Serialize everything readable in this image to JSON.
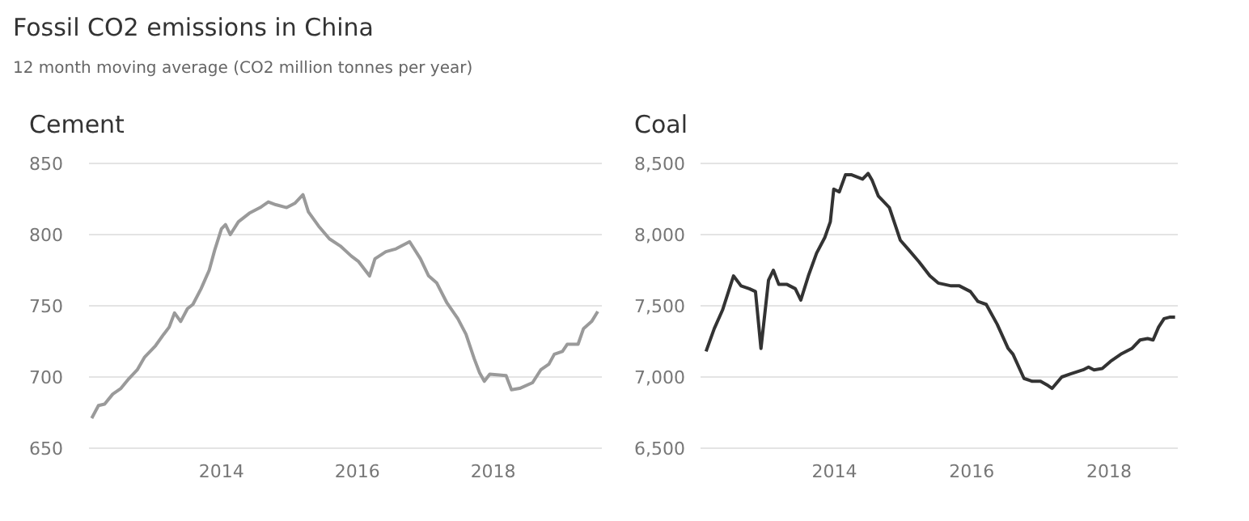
{
  "chart_data": [
    {
      "type": "line",
      "title": "Cement",
      "annotations": [
        "Fossil CO2 emissions in China",
        "12 month moving average (CO2 million tonnes per year)"
      ],
      "xlim": [
        2012.05,
        2019.6
      ],
      "xticks": [
        2014,
        2016,
        2018
      ],
      "ylim": [
        650,
        850
      ],
      "yticks": [
        650,
        700,
        750,
        800,
        850
      ],
      "grid": "y",
      "series": [
        {
          "color": "#9a9a9a",
          "x": [
            2012.09,
            2012.19,
            2012.28,
            2012.4,
            2012.52,
            2012.64,
            2012.76,
            2012.87,
            2013.03,
            2013.15,
            2013.23,
            2013.31,
            2013.4,
            2013.5,
            2013.58,
            2013.7,
            2013.82,
            2013.9,
            2014.0,
            2014.06,
            2014.13,
            2014.25,
            2014.41,
            2014.57,
            2014.69,
            2014.8,
            2014.96,
            2015.08,
            2015.2,
            2015.28,
            2015.43,
            2015.59,
            2015.75,
            2015.91,
            2016.02,
            2016.18,
            2016.26,
            2016.42,
            2016.57,
            2016.77,
            2016.93,
            2017.05,
            2017.17,
            2017.32,
            2017.48,
            2017.6,
            2017.72,
            2017.8,
            2017.87,
            2017.95,
            2018.19,
            2018.27,
            2018.39,
            2018.58,
            2018.7,
            2018.82,
            2018.9,
            2019.02,
            2019.09,
            2019.25,
            2019.33,
            2019.45,
            2019.54
          ],
          "values": [
            671,
            680,
            681,
            688,
            692,
            699,
            705,
            714,
            722,
            730,
            735,
            745,
            739,
            748,
            751,
            762,
            775,
            789,
            804,
            807,
            800,
            809,
            815,
            819,
            823,
            821,
            819,
            822,
            828,
            816,
            806,
            797,
            792,
            785,
            781,
            771,
            783,
            788,
            790,
            795,
            783,
            771,
            766,
            752,
            741,
            730,
            713,
            703,
            697,
            702,
            701,
            691,
            692,
            696,
            705,
            709,
            716,
            718,
            723,
            723,
            734,
            739,
            746
          ]
        }
      ]
    },
    {
      "type": "line",
      "title": "Coal",
      "xlim": [
        2012.05,
        2019.0
      ],
      "xticks": [
        2014,
        2016,
        2018
      ],
      "ylim": [
        6500,
        8500
      ],
      "yticks": [
        {
          "value": 6500,
          "label": "6,500"
        },
        {
          "value": 7000,
          "label": "7,000"
        },
        {
          "value": 7500,
          "label": "7,500"
        },
        {
          "value": 8000,
          "label": "8,000"
        },
        {
          "value": 8500,
          "label": "8,500"
        }
      ],
      "grid": "y",
      "series": [
        {
          "color": "#333333",
          "x": [
            2012.13,
            2012.25,
            2012.37,
            2012.53,
            2012.64,
            2012.76,
            2012.85,
            2012.93,
            2013.04,
            2013.11,
            2013.19,
            2013.31,
            2013.43,
            2013.51,
            2013.62,
            2013.74,
            2013.86,
            2013.94,
            2013.99,
            2014.07,
            2014.16,
            2014.25,
            2014.41,
            2014.49,
            2014.55,
            2014.64,
            2014.8,
            2014.96,
            2015.07,
            2015.23,
            2015.39,
            2015.51,
            2015.7,
            2015.82,
            2015.98,
            2016.09,
            2016.21,
            2016.37,
            2016.53,
            2016.6,
            2016.76,
            2016.88,
            2017.0,
            2017.11,
            2017.17,
            2017.31,
            2017.43,
            2017.62,
            2017.7,
            2017.78,
            2017.9,
            2018.02,
            2018.17,
            2018.33,
            2018.45,
            2018.56,
            2018.64,
            2018.72,
            2018.8,
            2018.88,
            2018.96
          ],
          "values": [
            7180,
            7340,
            7470,
            7710,
            7640,
            7620,
            7600,
            7200,
            7680,
            7750,
            7650,
            7650,
            7620,
            7540,
            7710,
            7870,
            7980,
            8090,
            8320,
            8300,
            8420,
            8420,
            8390,
            8430,
            8380,
            8270,
            8190,
            7960,
            7900,
            7810,
            7710,
            7660,
            7640,
            7640,
            7600,
            7530,
            7510,
            7370,
            7200,
            7160,
            6990,
            6970,
            6970,
            6940,
            6920,
            7000,
            7020,
            7050,
            7070,
            7050,
            7060,
            7110,
            7160,
            7200,
            7260,
            7270,
            7260,
            7350,
            7410,
            7420,
            7420
          ]
        }
      ]
    }
  ]
}
